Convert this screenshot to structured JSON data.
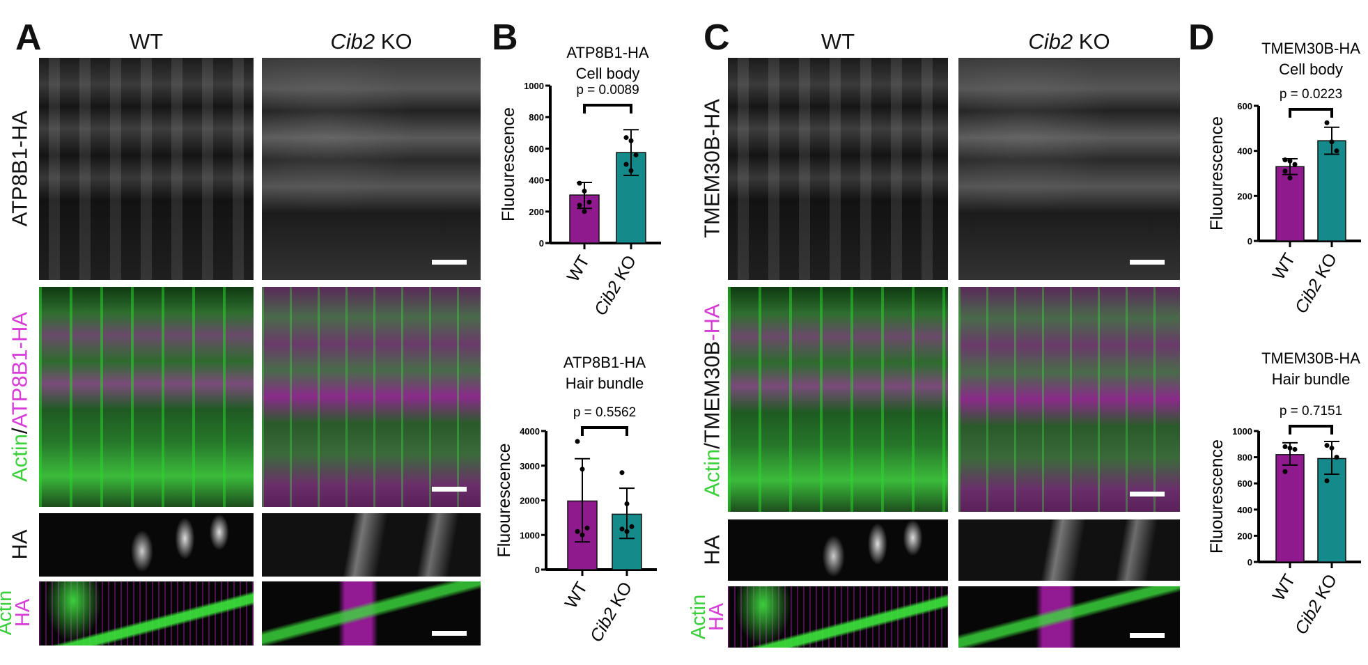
{
  "panels": {
    "A": {
      "letter": "A",
      "col_wt": "WT",
      "col_ko_gene": "Cib2",
      "col_ko_suffix": " KO",
      "row1": "ATP8B1-HA",
      "row2_actin": "Actin",
      "row2_sep": "/",
      "row2_ha": "ATP8B1-HA",
      "row3": "HA",
      "row4_actin": "Actin",
      "row4_ha": "HA"
    },
    "B": {
      "letter": "B"
    },
    "C": {
      "letter": "C",
      "col_wt": "WT",
      "col_ko_gene": "Cib2",
      "col_ko_suffix": " KO",
      "row1": "TMEM30B-HA",
      "row2_actin": "Actin",
      "row2_sep": "/TMEM30B",
      "row2_ha": "-HA",
      "row3": "HA",
      "row4_actin": "Actin",
      "row4_ha": "HA"
    },
    "D": {
      "letter": "D"
    }
  },
  "colors": {
    "wt": "#8e1a8e",
    "ko": "#148a8a",
    "green": "#3ccf3c",
    "magenta": "#d63cd6"
  },
  "chart_data": [
    {
      "id": "b-top",
      "type": "bar",
      "title": [
        "ATP8B1-HA",
        "Cell body"
      ],
      "ylabel": "Fluourescence",
      "ylim": [
        0,
        1000
      ],
      "yticks": [
        0,
        200,
        400,
        600,
        800,
        1000
      ],
      "categories": [
        "WT",
        "Cib2 KO"
      ],
      "values": [
        305,
        575
      ],
      "error": [
        [
          220,
          385
        ],
        [
          430,
          720
        ]
      ],
      "points": [
        [
          380,
          330,
          260,
          240,
          200
        ],
        [
          670,
          650,
          560,
          500,
          460
        ]
      ],
      "p_label": "p = 0.0089"
    },
    {
      "id": "b-bottom",
      "type": "bar",
      "title": [
        "ATP8B1-HA",
        "Hair bundle"
      ],
      "ylabel": "Fluourescence",
      "ylim": [
        0,
        4000
      ],
      "yticks": [
        0,
        1000,
        2000,
        3000,
        4000
      ],
      "categories": [
        "WT",
        "Cib2 KO"
      ],
      "values": [
        1980,
        1600
      ],
      "error": [
        [
          800,
          3200
        ],
        [
          900,
          2350
        ]
      ],
      "points": [
        [
          3700,
          2900,
          1200,
          1100,
          1000
        ],
        [
          2800,
          1900,
          1240,
          1170,
          1100
        ]
      ],
      "p_label": "p = 0.5562"
    },
    {
      "id": "d-top",
      "type": "bar",
      "title": [
        "TMEM30B-HA",
        "Cell body"
      ],
      "ylabel": "Fluourescence",
      "ylim": [
        0,
        600
      ],
      "yticks": [
        0,
        200,
        400,
        600
      ],
      "categories": [
        "WT",
        "Cib2 KO"
      ],
      "values": [
        330,
        445
      ],
      "error": [
        [
          295,
          365
        ],
        [
          385,
          505
        ]
      ],
      "points": [
        [
          360,
          355,
          340,
          310,
          280
        ],
        [
          525,
          440,
          400
        ]
      ],
      "p_label": "p = 0.0223"
    },
    {
      "id": "d-bottom",
      "type": "bar",
      "title": [
        "TMEM30B-HA",
        "Hair bundle"
      ],
      "ylabel": "Fluourescence",
      "ylim": [
        0,
        1000
      ],
      "yticks": [
        0,
        200,
        400,
        600,
        800,
        1000
      ],
      "categories": [
        "WT",
        "Cib2 KO"
      ],
      "values": [
        820,
        790
      ],
      "error": [
        [
          740,
          910
        ],
        [
          670,
          920
        ]
      ],
      "points": [
        [
          880,
          870,
          860,
          690
        ],
        [
          890,
          870,
          800,
          620
        ]
      ],
      "p_label": "p = 0.7151"
    }
  ]
}
